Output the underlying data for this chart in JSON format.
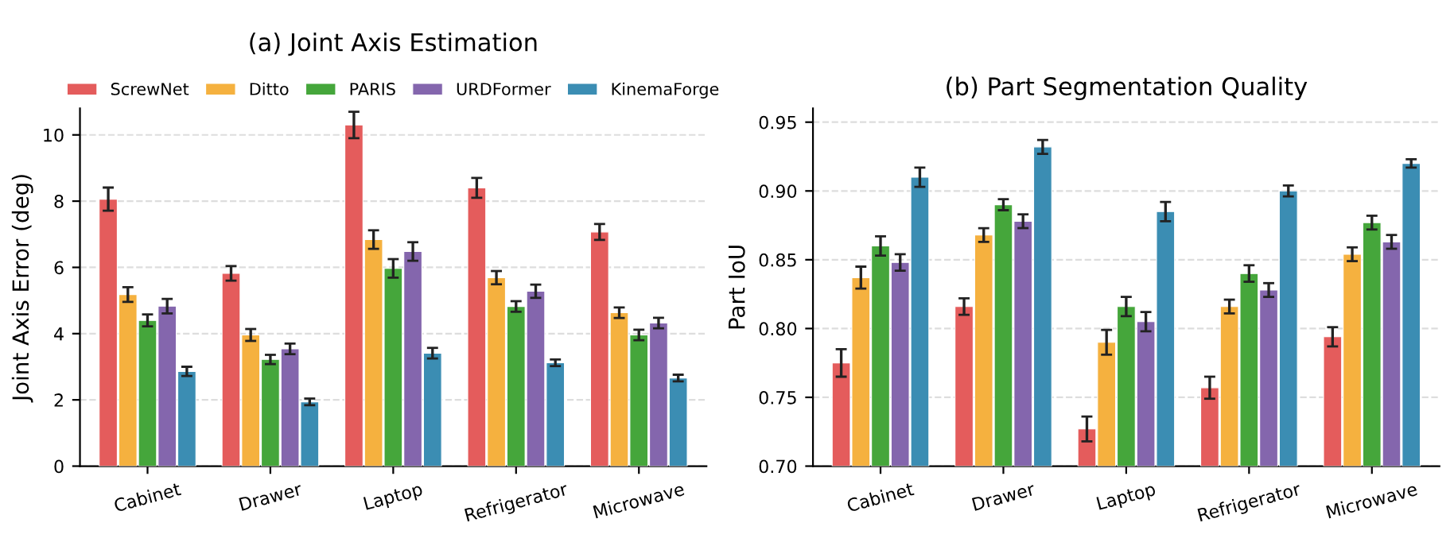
{
  "chart_data": [
    {
      "type": "bar",
      "title": "(a) Joint Axis Estimation",
      "ylabel": "Joint Axis Error (deg)",
      "categories": [
        "Cabinet",
        "Drawer",
        "Laptop",
        "Refrigerator",
        "Microwave"
      ],
      "series": [
        {
          "name": "ScrewNet",
          "color": "#e45c5c",
          "values": [
            8.06,
            5.82,
            10.3,
            8.4,
            7.07
          ],
          "errors": [
            0.35,
            0.22,
            0.4,
            0.3,
            0.24
          ]
        },
        {
          "name": "Ditto",
          "color": "#f5b13f",
          "values": [
            5.18,
            3.96,
            6.84,
            5.69,
            4.63
          ],
          "errors": [
            0.22,
            0.18,
            0.28,
            0.2,
            0.16
          ]
        },
        {
          "name": "PARIS",
          "color": "#45a63b",
          "values": [
            4.4,
            3.22,
            5.97,
            4.82,
            3.96
          ],
          "errors": [
            0.18,
            0.14,
            0.28,
            0.16,
            0.16
          ]
        },
        {
          "name": "URDFormer",
          "color": "#8466ad",
          "values": [
            4.83,
            3.54,
            6.48,
            5.28,
            4.32
          ],
          "errors": [
            0.22,
            0.16,
            0.28,
            0.2,
            0.16
          ]
        },
        {
          "name": "KinemaForge",
          "color": "#3b8db3",
          "values": [
            2.86,
            1.94,
            3.41,
            3.12,
            2.66
          ],
          "errors": [
            0.14,
            0.1,
            0.16,
            0.1,
            0.1
          ]
        }
      ],
      "ylim": [
        0,
        10.8
      ],
      "yticks": [
        0,
        2,
        4,
        6,
        8,
        10
      ],
      "grid": "y",
      "legend": "top"
    },
    {
      "type": "bar",
      "title": "(b) Part Segmentation Quality",
      "ylabel": "Part IoU",
      "categories": [
        "Cabinet",
        "Drawer",
        "Laptop",
        "Refrigerator",
        "Microwave"
      ],
      "series": [
        {
          "color": "#e45c5c",
          "values": [
            0.775,
            0.816,
            0.727,
            0.757,
            0.794
          ],
          "errors": [
            0.01,
            0.006,
            0.009,
            0.008,
            0.007
          ]
        },
        {
          "color": "#f5b13f",
          "values": [
            0.837,
            0.868,
            0.79,
            0.816,
            0.854
          ],
          "errors": [
            0.008,
            0.005,
            0.009,
            0.005,
            0.005
          ]
        },
        {
          "color": "#45a63b",
          "values": [
            0.86,
            0.89,
            0.816,
            0.84,
            0.877
          ],
          "errors": [
            0.007,
            0.004,
            0.007,
            0.006,
            0.005
          ]
        },
        {
          "color": "#8466ad",
          "values": [
            0.848,
            0.878,
            0.805,
            0.828,
            0.863
          ],
          "errors": [
            0.006,
            0.005,
            0.007,
            0.005,
            0.005
          ]
        },
        {
          "color": "#3b8db3",
          "values": [
            0.91,
            0.932,
            0.885,
            0.9,
            0.92
          ],
          "errors": [
            0.007,
            0.005,
            0.007,
            0.004,
            0.003
          ]
        }
      ],
      "ylim": [
        0.7,
        0.96
      ],
      "yticks": [
        {
          "value": 0.7,
          "label": "0.70"
        },
        0.75,
        {
          "value": 0.8,
          "label": "0.80"
        },
        0.85,
        {
          "value": 0.9,
          "label": "0.90"
        },
        0.95
      ],
      "grid": "y"
    }
  ]
}
